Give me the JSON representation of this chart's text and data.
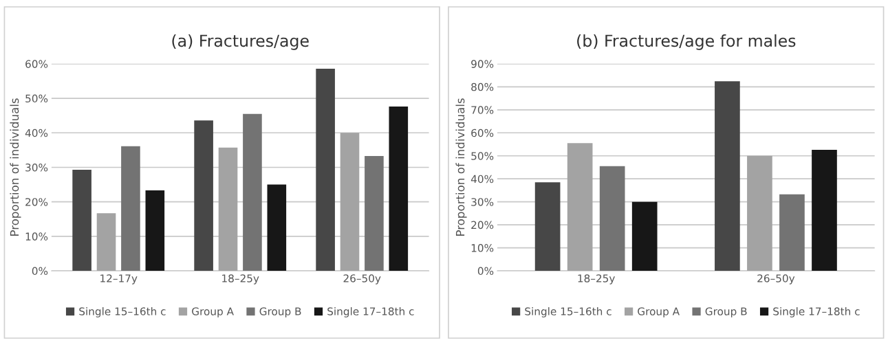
{
  "chart_data": [
    {
      "type": "bar",
      "title": "(a) Fractures/age",
      "ylabel": "Proportion of individuals",
      "categories": [
        "12–17y",
        "18–25y",
        "26–50y"
      ],
      "series": [
        {
          "name": "Single 15–16th c",
          "color": "#474747",
          "values": [
            29.3,
            43.6,
            58.6
          ]
        },
        {
          "name": "Group A",
          "color": "#a3a3a3",
          "values": [
            16.7,
            35.7,
            40.0
          ]
        },
        {
          "name": "Group B",
          "color": "#737373",
          "values": [
            36.1,
            45.5,
            33.3
          ]
        },
        {
          "name": "Single 17–18th c",
          "color": "#171717",
          "values": [
            23.3,
            25.0,
            47.6
          ]
        }
      ],
      "ylim": [
        0,
        60
      ],
      "yticks": [
        {
          "value": 0,
          "label": "0%"
        },
        {
          "value": 10,
          "label": "10%"
        },
        {
          "value": 20,
          "label": "20%"
        },
        {
          "value": 30,
          "label": "30%"
        },
        {
          "value": 40,
          "label": "40%"
        },
        {
          "value": 50,
          "label": "50%"
        },
        {
          "value": 60,
          "label": "60%"
        }
      ],
      "grid": "y",
      "legend": "bottom"
    },
    {
      "type": "bar",
      "title": "(b) Fractures/age for males",
      "ylabel": "Proportion of individuals",
      "categories": [
        "18–25y",
        "26–50y"
      ],
      "series": [
        {
          "name": "Single 15–16th c",
          "color": "#474747",
          "values": [
            38.5,
            82.4
          ]
        },
        {
          "name": "Group A",
          "color": "#a3a3a3",
          "values": [
            55.5,
            50.0
          ]
        },
        {
          "name": "Group B",
          "color": "#737373",
          "values": [
            45.5,
            33.3
          ]
        },
        {
          "name": "Single 17–18th c",
          "color": "#171717",
          "values": [
            30.0,
            52.6
          ]
        }
      ],
      "ylim": [
        0,
        90
      ],
      "yticks": [
        {
          "value": 0,
          "label": "0%"
        },
        {
          "value": 10,
          "label": "10%"
        },
        {
          "value": 20,
          "label": "20%"
        },
        {
          "value": 30,
          "label": "30%"
        },
        {
          "value": 40,
          "label": "40%"
        },
        {
          "value": 50,
          "label": "50%"
        },
        {
          "value": 60,
          "label": "60%"
        },
        {
          "value": 70,
          "label": "70%"
        },
        {
          "value": 80,
          "label": "80%"
        },
        {
          "value": 90,
          "label": "90%"
        }
      ],
      "grid": "y",
      "legend": "bottom"
    }
  ]
}
